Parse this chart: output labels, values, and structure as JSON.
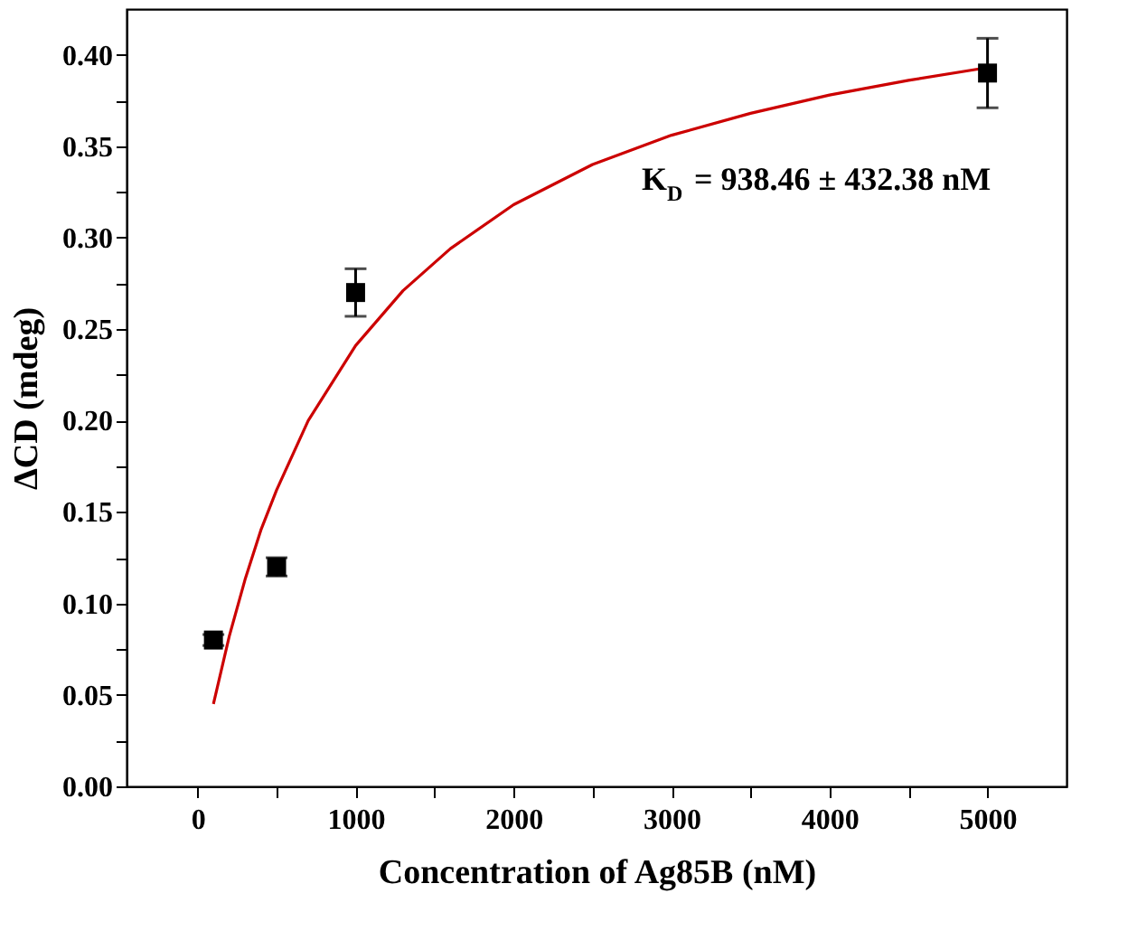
{
  "chart_data": {
    "type": "scatter",
    "xlabel": "Concentration of Ag85B (nM)",
    "ylabel": "ΔCD (mdeg)",
    "annotations": [
      "K$_{D}$ = 938.46 ± 432.38 nM"
    ],
    "series": [
      {
        "color": "#000000",
        "marker": "square",
        "x": [
          100,
          500,
          1000,
          5000
        ],
        "values": [
          0.08,
          0.12,
          0.27,
          0.39
        ],
        "errors": [
          0.003,
          0.005,
          0.013,
          0.019
        ]
      },
      {
        "type": "line",
        "color": "#cc0000",
        "marker": "none",
        "line_style": "solid",
        "x": [
          100,
          200,
          300,
          400,
          500,
          700,
          1000,
          1300,
          1600,
          2000,
          2500,
          3000,
          3500,
          4000,
          4500,
          5000
        ],
        "values": [
          0.045,
          0.082,
          0.113,
          0.14,
          0.162,
          0.2,
          0.241,
          0.271,
          0.294,
          0.318,
          0.34,
          0.356,
          0.368,
          0.378,
          0.386,
          0.393
        ]
      }
    ],
    "xlim": [
      -450,
      5500
    ],
    "xticks": [
      0,
      {
        "value": 500,
        "label": null
      },
      1000,
      {
        "value": 1500,
        "label": null
      },
      2000,
      {
        "value": 2500,
        "label": null
      },
      3000,
      {
        "value": 3500,
        "label": null
      },
      4000,
      {
        "value": 4500,
        "label": null
      },
      5000
    ],
    "ylim": [
      0,
      0.425
    ],
    "yticks": [
      {
        "value": 0,
        "label": "0.00"
      },
      {
        "value": 0.025,
        "label": null
      },
      {
        "value": 0.05,
        "label": "0.05"
      },
      {
        "value": 0.075,
        "label": null
      },
      {
        "value": 0.1,
        "label": "0.10"
      },
      {
        "value": 0.125,
        "label": null
      },
      {
        "value": 0.15,
        "label": "0.15"
      },
      {
        "value": 0.175,
        "label": null
      },
      {
        "value": 0.2,
        "label": "0.20"
      },
      {
        "value": 0.225,
        "label": null
      },
      {
        "value": 0.25,
        "label": "0.25"
      },
      {
        "value": 0.275,
        "label": null
      },
      {
        "value": 0.3,
        "label": "0.30"
      },
      {
        "value": 0.325,
        "label": null
      },
      {
        "value": 0.35,
        "label": "0.35"
      },
      {
        "value": 0.375,
        "label": null
      },
      {
        "value": 0.4,
        "label": "0.40"
      }
    ],
    "grid": false
  }
}
